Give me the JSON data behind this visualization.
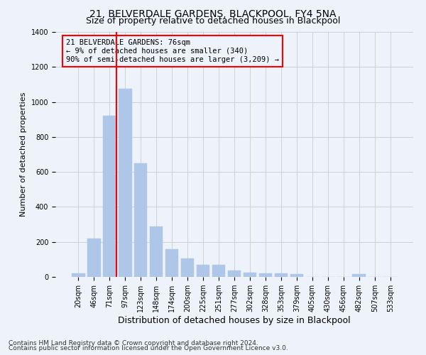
{
  "title": "21, BELVERDALE GARDENS, BLACKPOOL, FY4 5NA",
  "subtitle": "Size of property relative to detached houses in Blackpool",
  "xlabel": "Distribution of detached houses by size in Blackpool",
  "ylabel": "Number of detached properties",
  "categories": [
    "20sqm",
    "46sqm",
    "71sqm",
    "97sqm",
    "123sqm",
    "148sqm",
    "174sqm",
    "200sqm",
    "225sqm",
    "251sqm",
    "277sqm",
    "302sqm",
    "328sqm",
    "353sqm",
    "379sqm",
    "405sqm",
    "430sqm",
    "456sqm",
    "482sqm",
    "507sqm",
    "533sqm"
  ],
  "values": [
    20,
    220,
    920,
    1075,
    650,
    290,
    160,
    105,
    70,
    70,
    35,
    25,
    20,
    20,
    15,
    0,
    0,
    0,
    15,
    0,
    0
  ],
  "bar_color": "#aec6e8",
  "bar_edgecolor": "#aec6e8",
  "grid_color": "#d0d0d0",
  "background_color": "#eef2fa",
  "vline_color": "red",
  "vline_pos": 2.45,
  "annotation_text": "21 BELVERDALE GARDENS: 76sqm\n← 9% of detached houses are smaller (340)\n90% of semi-detached houses are larger (3,209) →",
  "annotation_box_color": "red",
  "ylim": [
    0,
    1400
  ],
  "yticks": [
    0,
    200,
    400,
    600,
    800,
    1000,
    1200,
    1400
  ],
  "footnote1": "Contains HM Land Registry data © Crown copyright and database right 2024.",
  "footnote2": "Contains public sector information licensed under the Open Government Licence v3.0.",
  "title_fontsize": 10,
  "subtitle_fontsize": 9,
  "xlabel_fontsize": 9,
  "ylabel_fontsize": 8,
  "tick_fontsize": 7,
  "annotation_fontsize": 7.5,
  "footnote_fontsize": 6.5
}
